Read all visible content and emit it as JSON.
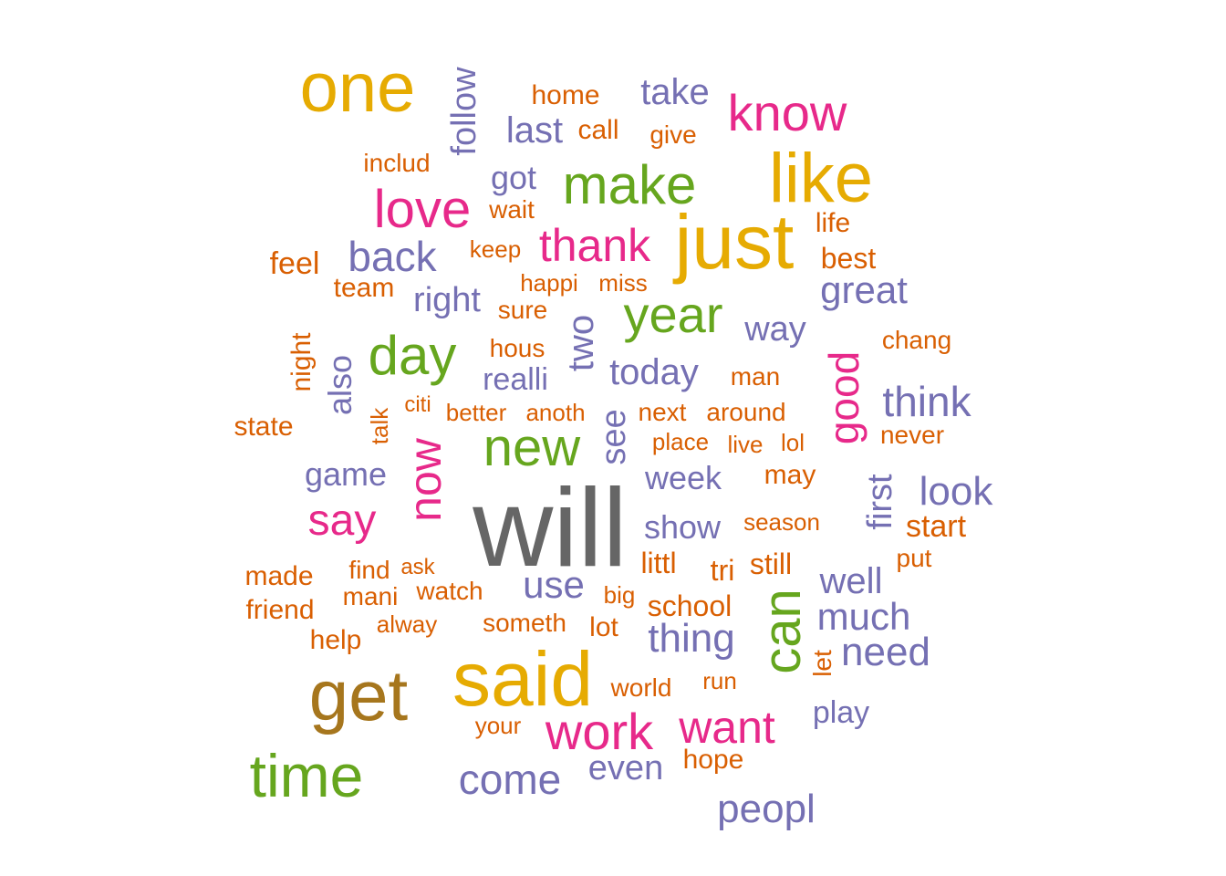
{
  "colors": {
    "gray": "#666666",
    "gold": "#E6AB02",
    "brown": "#A6761D",
    "green": "#66A61E",
    "magenta": "#E7298A",
    "purple": "#7570B3",
    "orange": "#D95F02"
  },
  "words": [
    {
      "text": "will",
      "color": "gray"
    },
    {
      "text": "one",
      "color": "gold"
    },
    {
      "text": "like",
      "color": "gold"
    },
    {
      "text": "just",
      "color": "gold"
    },
    {
      "text": "said",
      "color": "gold"
    },
    {
      "text": "get",
      "color": "brown"
    },
    {
      "text": "time",
      "color": "green"
    },
    {
      "text": "make",
      "color": "green"
    },
    {
      "text": "year",
      "color": "green"
    },
    {
      "text": "day",
      "color": "green"
    },
    {
      "text": "new",
      "color": "green"
    },
    {
      "text": "can",
      "color": "green"
    },
    {
      "text": "know",
      "color": "magenta"
    },
    {
      "text": "love",
      "color": "magenta"
    },
    {
      "text": "thank",
      "color": "magenta"
    },
    {
      "text": "now",
      "color": "magenta"
    },
    {
      "text": "good",
      "color": "magenta"
    },
    {
      "text": "say",
      "color": "magenta"
    },
    {
      "text": "work",
      "color": "magenta"
    },
    {
      "text": "want",
      "color": "magenta"
    },
    {
      "text": "follow",
      "color": "purple"
    },
    {
      "text": "take",
      "color": "purple"
    },
    {
      "text": "last",
      "color": "purple"
    },
    {
      "text": "got",
      "color": "purple"
    },
    {
      "text": "back",
      "color": "purple"
    },
    {
      "text": "right",
      "color": "purple"
    },
    {
      "text": "great",
      "color": "purple"
    },
    {
      "text": "way",
      "color": "purple"
    },
    {
      "text": "also",
      "color": "purple"
    },
    {
      "text": "two",
      "color": "purple"
    },
    {
      "text": "realli",
      "color": "purple"
    },
    {
      "text": "today",
      "color": "purple"
    },
    {
      "text": "think",
      "color": "purple"
    },
    {
      "text": "see",
      "color": "purple"
    },
    {
      "text": "game",
      "color": "purple"
    },
    {
      "text": "week",
      "color": "purple"
    },
    {
      "text": "first",
      "color": "purple"
    },
    {
      "text": "look",
      "color": "purple"
    },
    {
      "text": "show",
      "color": "purple"
    },
    {
      "text": "use",
      "color": "purple"
    },
    {
      "text": "well",
      "color": "purple"
    },
    {
      "text": "much",
      "color": "purple"
    },
    {
      "text": "thing",
      "color": "purple"
    },
    {
      "text": "need",
      "color": "purple"
    },
    {
      "text": "play",
      "color": "purple"
    },
    {
      "text": "come",
      "color": "purple"
    },
    {
      "text": "even",
      "color": "purple"
    },
    {
      "text": "peopl",
      "color": "purple"
    },
    {
      "text": "home",
      "color": "orange"
    },
    {
      "text": "call",
      "color": "orange"
    },
    {
      "text": "give",
      "color": "orange"
    },
    {
      "text": "includ",
      "color": "orange"
    },
    {
      "text": "wait",
      "color": "orange"
    },
    {
      "text": "life",
      "color": "orange"
    },
    {
      "text": "keep",
      "color": "orange"
    },
    {
      "text": "feel",
      "color": "orange"
    },
    {
      "text": "best",
      "color": "orange"
    },
    {
      "text": "team",
      "color": "orange"
    },
    {
      "text": "happi",
      "color": "orange"
    },
    {
      "text": "miss",
      "color": "orange"
    },
    {
      "text": "sure",
      "color": "orange"
    },
    {
      "text": "night",
      "color": "orange"
    },
    {
      "text": "chang",
      "color": "orange"
    },
    {
      "text": "hous",
      "color": "orange"
    },
    {
      "text": "man",
      "color": "orange"
    },
    {
      "text": "citi",
      "color": "orange"
    },
    {
      "text": "talk",
      "color": "orange"
    },
    {
      "text": "better",
      "color": "orange"
    },
    {
      "text": "anoth",
      "color": "orange"
    },
    {
      "text": "next",
      "color": "orange"
    },
    {
      "text": "around",
      "color": "orange"
    },
    {
      "text": "state",
      "color": "orange"
    },
    {
      "text": "place",
      "color": "orange"
    },
    {
      "text": "live",
      "color": "orange"
    },
    {
      "text": "lol",
      "color": "orange"
    },
    {
      "text": "never",
      "color": "orange"
    },
    {
      "text": "may",
      "color": "orange"
    },
    {
      "text": "season",
      "color": "orange"
    },
    {
      "text": "start",
      "color": "orange"
    },
    {
      "text": "put",
      "color": "orange"
    },
    {
      "text": "made",
      "color": "orange"
    },
    {
      "text": "find",
      "color": "orange"
    },
    {
      "text": "ask",
      "color": "orange"
    },
    {
      "text": "littl",
      "color": "orange"
    },
    {
      "text": "tri",
      "color": "orange"
    },
    {
      "text": "still",
      "color": "orange"
    },
    {
      "text": "mani",
      "color": "orange"
    },
    {
      "text": "watch",
      "color": "orange"
    },
    {
      "text": "big",
      "color": "orange"
    },
    {
      "text": "school",
      "color": "orange"
    },
    {
      "text": "friend",
      "color": "orange"
    },
    {
      "text": "alway",
      "color": "orange"
    },
    {
      "text": "someth",
      "color": "orange"
    },
    {
      "text": "lot",
      "color": "orange"
    },
    {
      "text": "help",
      "color": "orange"
    },
    {
      "text": "let",
      "color": "orange"
    },
    {
      "text": "world",
      "color": "orange"
    },
    {
      "text": "run",
      "color": "orange"
    },
    {
      "text": "your",
      "color": "orange"
    },
    {
      "text": "hope",
      "color": "orange"
    }
  ]
}
